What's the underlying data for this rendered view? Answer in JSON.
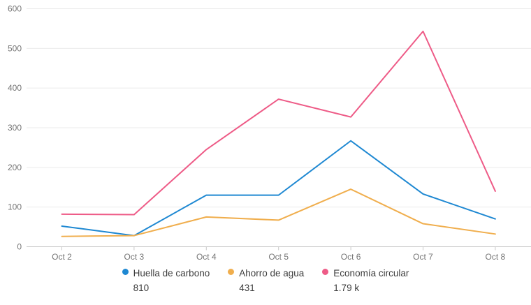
{
  "chart_data": {
    "type": "line",
    "categories": [
      "Oct 2",
      "Oct 3",
      "Oct 4",
      "Oct 5",
      "Oct 6",
      "Oct 7",
      "Oct 8"
    ],
    "series": [
      {
        "name": "Huella de carbono",
        "color": "#1e88d2",
        "values": [
          52,
          28,
          130,
          130,
          267,
          133,
          70
        ],
        "total_label": "810"
      },
      {
        "name": "Ahorro de agua",
        "color": "#f0ae4d",
        "values": [
          26,
          28,
          75,
          67,
          145,
          58,
          32
        ],
        "total_label": "431"
      },
      {
        "name": "Economía circular",
        "color": "#ee5b87",
        "values": [
          82,
          81,
          245,
          372,
          327,
          543,
          140
        ],
        "total_label": "1.79 k"
      }
    ],
    "title": "",
    "xlabel": "",
    "ylabel": "",
    "yticks": [
      0,
      100,
      200,
      300,
      400,
      500,
      600
    ],
    "ylim": [
      0,
      600
    ],
    "grid": "horizontal",
    "legend_position": "bottom"
  },
  "colors": {
    "background": "#ffffff",
    "gridline": "#ebebeb",
    "axis_line": "#c9c9c9",
    "axis_text": "#757575",
    "legend_text": "#3d3d3d"
  }
}
